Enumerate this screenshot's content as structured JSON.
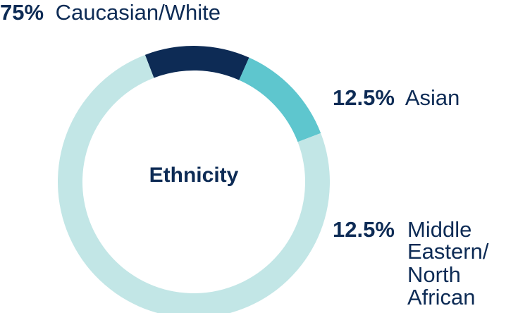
{
  "chart_data": {
    "type": "pie",
    "donut": true,
    "center_label": "Ethnicity",
    "slices": [
      {
        "name": "Caucasian/White",
        "value": 75,
        "value_label": "75%",
        "label_lines": [
          "Caucasian/White"
        ],
        "color": "#c2e6e6"
      },
      {
        "name": "Asian",
        "value": 12.5,
        "value_label": "12.5%",
        "label_lines": [
          "Asian"
        ],
        "color": "#0d2b55"
      },
      {
        "name": "Middle Eastern/North African",
        "value": 12.5,
        "value_label": "12.5%",
        "label_lines": [
          "Middle",
          "Eastern/",
          "North",
          "African"
        ],
        "color": "#5ec6ce"
      }
    ]
  }
}
